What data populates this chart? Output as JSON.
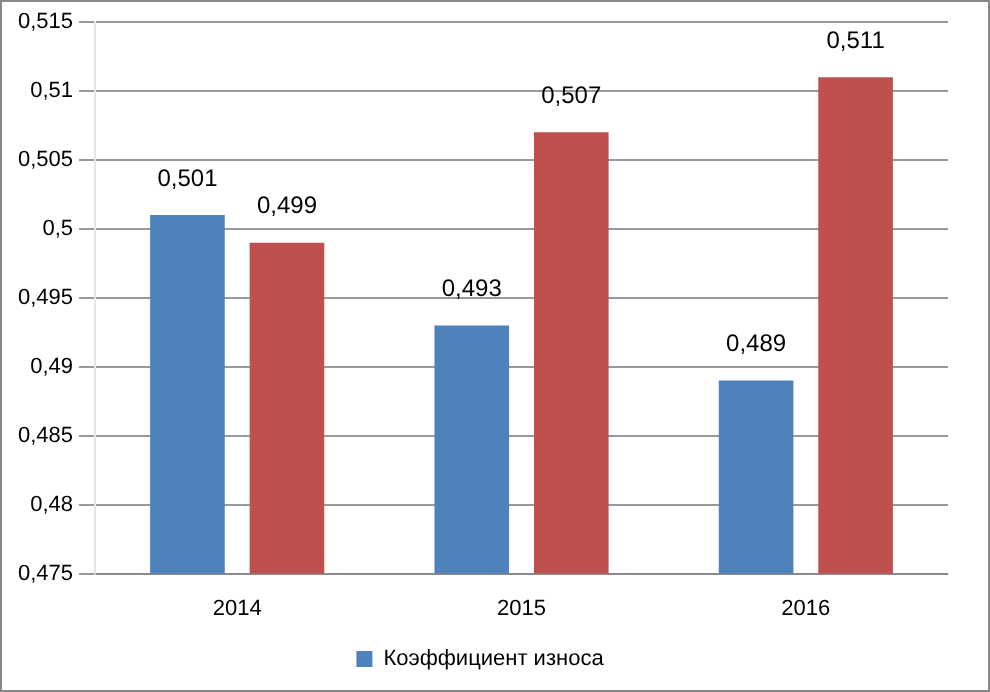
{
  "chart_data": {
    "type": "bar",
    "categories": [
      "2014",
      "2015",
      "2016"
    ],
    "series": [
      {
        "name": "Коэффициент износа",
        "color": "#4f81bd",
        "values": [
          0.501,
          0.493,
          0.489
        ],
        "value_labels": [
          "0,501",
          "0,493",
          "0,489"
        ]
      },
      {
        "color": "#c0504d",
        "values": [
          0.499,
          0.507,
          0.511
        ],
        "value_labels": [
          "0,499",
          "0,507",
          "0,511"
        ]
      }
    ],
    "ylim": [
      0.475,
      0.515
    ],
    "yticks": [
      {
        "value": 0.475,
        "label": "0,475"
      },
      {
        "value": 0.48,
        "label": "0,48"
      },
      {
        "value": 0.485,
        "label": "0,485"
      },
      {
        "value": 0.49,
        "label": "0,49"
      },
      {
        "value": 0.495,
        "label": "0,495"
      },
      {
        "value": 0.5,
        "label": "0,5"
      },
      {
        "value": 0.505,
        "label": "0,505"
      },
      {
        "value": 0.51,
        "label": "0,51"
      },
      {
        "value": 0.515,
        "label": "0,515"
      }
    ],
    "grid": "y",
    "legend": "bottom"
  }
}
